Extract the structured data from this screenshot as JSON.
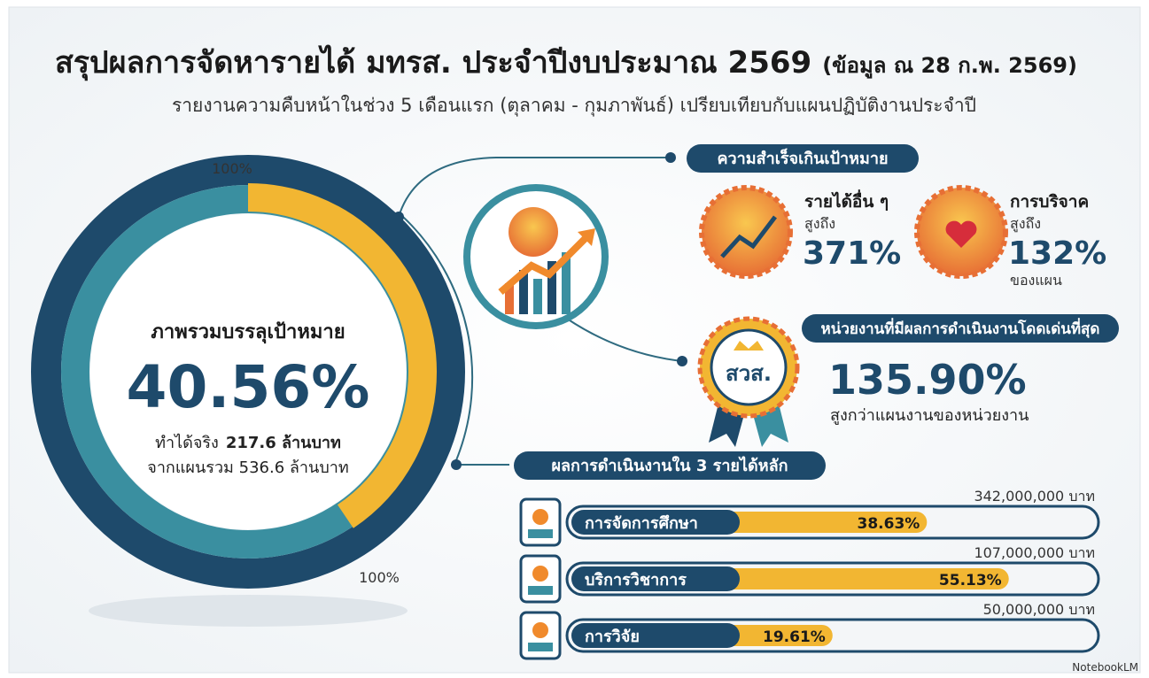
{
  "header": {
    "title": "สรุปผลการจัดหารายได้ มทรส. ประจำปีงบประมาณ 2569",
    "title_note": "(ข้อมูล ณ 28 ก.พ. 2569)",
    "subtitle": "รายงานความคืบหน้าในช่วง 5 เดือนแรก (ตุลาคม - กุมภาพันธ์) เปรียบเทียบกับแผนปฏิบัติงานประจำปี"
  },
  "overview": {
    "ring_start_label": "100%",
    "ring_end_label": "100%",
    "heading": "ภาพรวมบรรลุเป้าหมาย",
    "value": 40.56,
    "label": "40.56%",
    "actual": "ทำได้จริง",
    "actual_amount": "217.6 ล้านบาท",
    "plan": "จากแผนรวม 536.6 ล้านบาท"
  },
  "achievements": {
    "heading": "ความสำเร็จเกินเป้าหมาย",
    "items": [
      {
        "name": "รายได้อื่น ๆ",
        "prefix": "สูงถึง",
        "value": "371%"
      },
      {
        "name": "การบริจาค",
        "prefix": "สูงถึง",
        "value": "132%",
        "suffix": "ของแผน"
      }
    ]
  },
  "top_unit": {
    "heading": "หน่วยงานที่มีผลการดำเนินงานโดดเด่นที่สุด",
    "badge": "สวส.",
    "value": "135.90%",
    "note": "สูงกว่าแผนงานของหน่วยงาน"
  },
  "main_income": {
    "heading": "ผลการดำเนินงานใน 3 รายได้หลัก",
    "rows": [
      {
        "name": "การจัดการศึกษา",
        "target": "342,000,000 บาท",
        "value": 38.63,
        "label": "38.63%"
      },
      {
        "name": "บริการวิชาการ",
        "target": "107,000,000 บาท",
        "value": 55.13,
        "label": "55.13%"
      },
      {
        "name": "การวิจัย",
        "target": "50,000,000 บาท",
        "value": 19.61,
        "label": "19.61%"
      }
    ]
  },
  "footer": "NotebookLM"
}
